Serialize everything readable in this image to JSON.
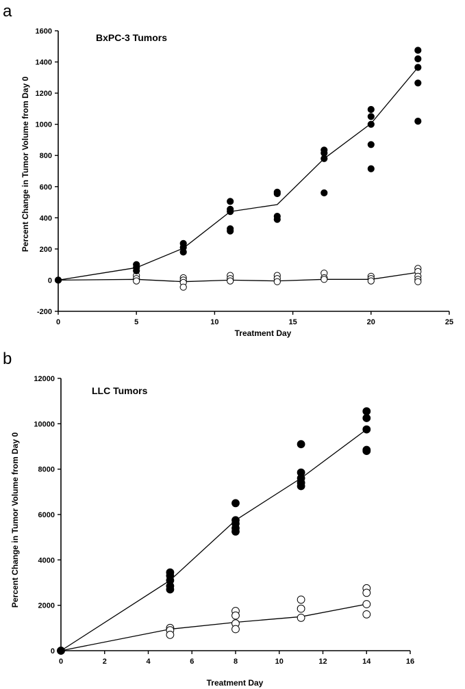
{
  "chart_data": [
    {
      "panel": "a",
      "type": "scatter",
      "title": "BxPC-3 Tumors",
      "xlabel": "Treatment Day",
      "ylabel": "Percent Change in Tumor Volume from Day 0",
      "xlim": [
        0,
        25
      ],
      "ylim": [
        -200,
        1600
      ],
      "xticks": [
        0,
        5,
        10,
        15,
        20,
        25
      ],
      "yticks": [
        -200,
        0,
        200,
        400,
        600,
        800,
        1000,
        1200,
        1400,
        1600
      ],
      "grid": false,
      "series": [
        {
          "marker": "filled",
          "points": [
            [
              0,
              0
            ],
            [
              5,
              100
            ],
            [
              5,
              80
            ],
            [
              5,
              60
            ],
            [
              8,
              235
            ],
            [
              8,
              210
            ],
            [
              8,
              180
            ],
            [
              11,
              505
            ],
            [
              11,
              455
            ],
            [
              11,
              440
            ],
            [
              11,
              330
            ],
            [
              11,
              315
            ],
            [
              14,
              565
            ],
            [
              14,
              555
            ],
            [
              14,
              410
            ],
            [
              14,
              390
            ],
            [
              17,
              835
            ],
            [
              17,
              815
            ],
            [
              17,
              780
            ],
            [
              17,
              560
            ],
            [
              20,
              1095
            ],
            [
              20,
              1050
            ],
            [
              20,
              1000
            ],
            [
              20,
              870
            ],
            [
              20,
              715
            ],
            [
              23,
              1475
            ],
            [
              23,
              1420
            ],
            [
              23,
              1365
            ],
            [
              23,
              1265
            ],
            [
              23,
              1020
            ]
          ],
          "mean_line": [
            [
              0,
              0
            ],
            [
              5,
              80
            ],
            [
              8,
              205
            ],
            [
              11,
              440
            ],
            [
              14,
              485
            ],
            [
              17,
              780
            ],
            [
              20,
              1005
            ],
            [
              23,
              1365
            ]
          ]
        },
        {
          "marker": "open",
          "points": [
            [
              0,
              0
            ],
            [
              5,
              30
            ],
            [
              5,
              10
            ],
            [
              5,
              -5
            ],
            [
              8,
              15
            ],
            [
              8,
              0
            ],
            [
              8,
              -15
            ],
            [
              8,
              -45
            ],
            [
              11,
              30
            ],
            [
              11,
              10
            ],
            [
              11,
              -5
            ],
            [
              14,
              30
            ],
            [
              14,
              10
            ],
            [
              14,
              -10
            ],
            [
              17,
              45
            ],
            [
              17,
              15
            ],
            [
              17,
              5
            ],
            [
              20,
              25
            ],
            [
              20,
              10
            ],
            [
              20,
              -5
            ],
            [
              23,
              75
            ],
            [
              23,
              55
            ],
            [
              23,
              25
            ],
            [
              23,
              5
            ],
            [
              23,
              -10
            ]
          ],
          "mean_line": [
            [
              0,
              0
            ],
            [
              5,
              5
            ],
            [
              8,
              -10
            ],
            [
              11,
              0
            ],
            [
              14,
              -5
            ],
            [
              17,
              5
            ],
            [
              20,
              5
            ],
            [
              23,
              50
            ]
          ]
        }
      ]
    },
    {
      "panel": "b",
      "type": "scatter",
      "title": "LLC Tumors",
      "xlabel": "Treatment Day",
      "ylabel": "Percent Change in Tumor Volume from Day 0",
      "xlim": [
        0,
        16
      ],
      "ylim": [
        0,
        12000
      ],
      "xticks": [
        0,
        2,
        4,
        6,
        8,
        10,
        12,
        14,
        16
      ],
      "yticks": [
        0,
        2000,
        4000,
        6000,
        8000,
        10000,
        12000
      ],
      "grid": false,
      "series": [
        {
          "marker": "filled",
          "points": [
            [
              0,
              0
            ],
            [
              5,
              3450
            ],
            [
              5,
              3300
            ],
            [
              5,
              3100
            ],
            [
              5,
              2850
            ],
            [
              5,
              2700
            ],
            [
              8,
              6500
            ],
            [
              8,
              5750
            ],
            [
              8,
              5600
            ],
            [
              8,
              5400
            ],
            [
              8,
              5250
            ],
            [
              11,
              9100
            ],
            [
              11,
              7850
            ],
            [
              11,
              7600
            ],
            [
              11,
              7400
            ],
            [
              11,
              7250
            ],
            [
              14,
              10550
            ],
            [
              14,
              10250
            ],
            [
              14,
              9750
            ],
            [
              14,
              8850
            ],
            [
              14,
              8800
            ]
          ],
          "mean_line": [
            [
              0,
              0
            ],
            [
              5,
              3100
            ],
            [
              8,
              5750
            ],
            [
              11,
              7600
            ],
            [
              14,
              9750
            ]
          ]
        },
        {
          "marker": "open",
          "points": [
            [
              0,
              0
            ],
            [
              5,
              1000
            ],
            [
              5,
              900
            ],
            [
              5,
              700
            ],
            [
              8,
              1750
            ],
            [
              8,
              1550
            ],
            [
              8,
              1200
            ],
            [
              8,
              950
            ],
            [
              11,
              2250
            ],
            [
              11,
              1850
            ],
            [
              11,
              1450
            ],
            [
              14,
              2750
            ],
            [
              14,
              2550
            ],
            [
              14,
              2050
            ],
            [
              14,
              1600
            ]
          ],
          "mean_line": [
            [
              0,
              0
            ],
            [
              5,
              950
            ],
            [
              8,
              1250
            ],
            [
              11,
              1500
            ],
            [
              14,
              2050
            ]
          ]
        }
      ]
    }
  ]
}
